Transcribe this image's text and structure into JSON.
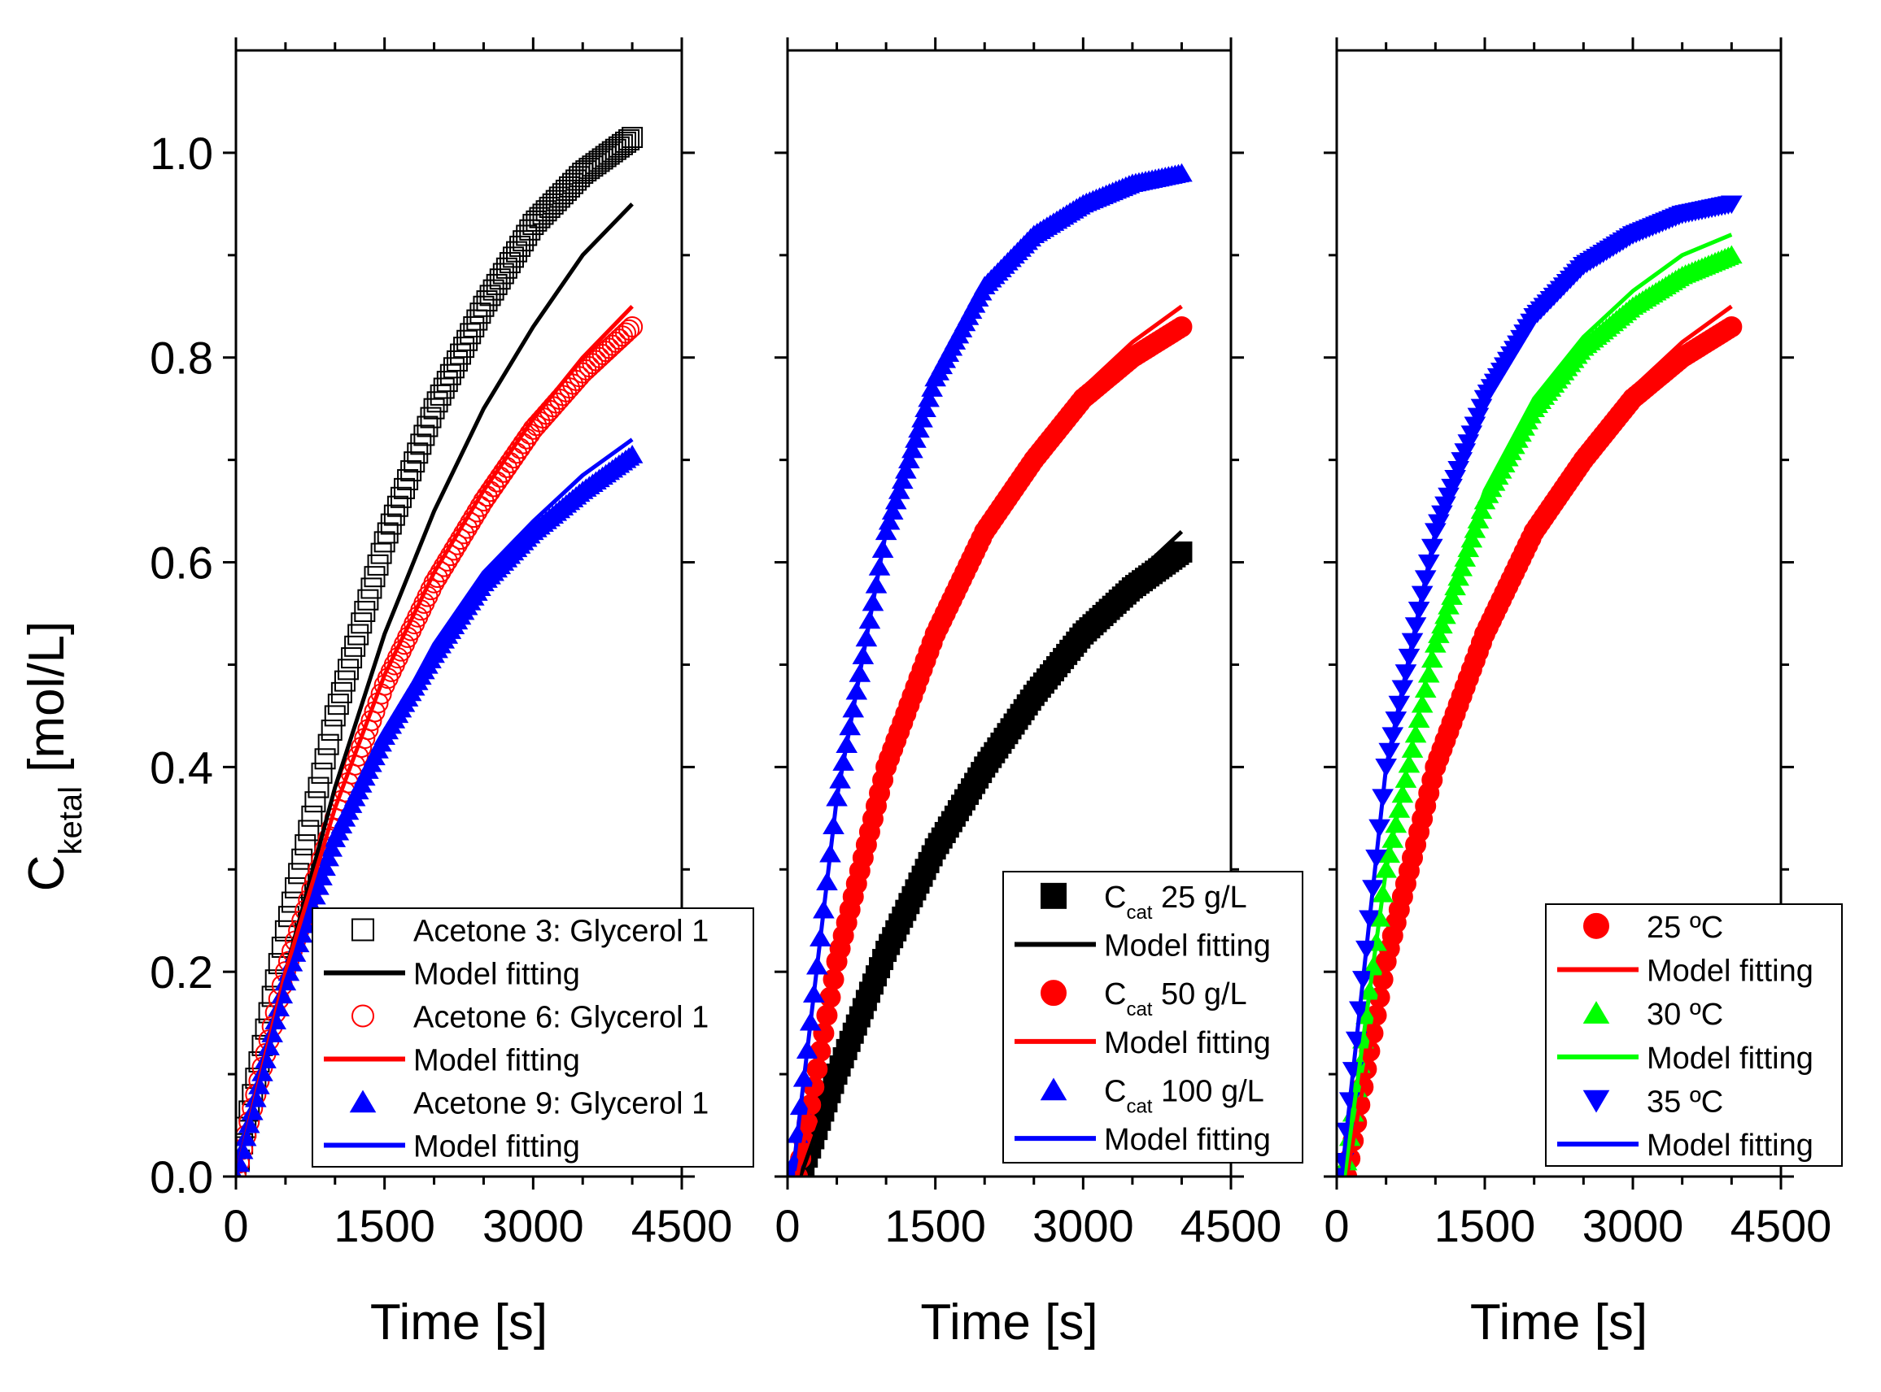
{
  "colors": {
    "black": "#000000",
    "red": "#ff0000",
    "blue": "#0000ff",
    "green": "#00ff00"
  },
  "y_axis": {
    "title_main": "C",
    "title_sub": "ketal",
    "title_unit": " [mol/L]"
  },
  "chart_data": [
    {
      "type": "scatter",
      "xlabel": "Time [s]",
      "xlim": [
        0,
        4500
      ],
      "ylim": [
        0,
        1.1
      ],
      "xticks": [
        "0",
        "1500",
        "3000",
        "4500"
      ],
      "yticks": [
        "0.0",
        "0.2",
        "0.4",
        "0.6",
        "0.8",
        "1.0"
      ],
      "legend_position": "bottom-right",
      "series": [
        {
          "name": "Acetone 3: Glycerol 1",
          "marker": "open-square",
          "color": "#000000",
          "x": [
            0,
            500,
            1000,
            1500,
            2000,
            2500,
            3000,
            3500,
            4000
          ],
          "y": [
            0.0,
            0.24,
            0.45,
            0.62,
            0.75,
            0.85,
            0.93,
            0.98,
            1.015
          ]
        },
        {
          "name": "Model fitting",
          "marker": "line",
          "color": "#000000",
          "x": [
            0,
            500,
            1000,
            1500,
            2000,
            2500,
            3000,
            3500,
            4000
          ],
          "y": [
            0.0,
            0.2,
            0.38,
            0.53,
            0.65,
            0.75,
            0.83,
            0.9,
            0.95
          ]
        },
        {
          "name": "Acetone 6: Glycerol 1",
          "marker": "open-circle",
          "color": "#ff0000",
          "x": [
            0,
            500,
            1000,
            1500,
            2000,
            2500,
            3000,
            3500,
            4000
          ],
          "y": [
            0.0,
            0.2,
            0.35,
            0.48,
            0.58,
            0.66,
            0.73,
            0.785,
            0.83
          ]
        },
        {
          "name": "Model fitting",
          "marker": "line",
          "color": "#ff0000",
          "x": [
            0,
            500,
            1000,
            1500,
            2000,
            2500,
            3000,
            3500,
            4000
          ],
          "y": [
            0.0,
            0.2,
            0.36,
            0.49,
            0.59,
            0.67,
            0.74,
            0.8,
            0.85
          ]
        },
        {
          "name": "Acetone 9: Glycerol 1",
          "marker": "filled-triangle",
          "color": "#0000ff",
          "x": [
            0,
            500,
            1000,
            1500,
            2000,
            2500,
            3000,
            3500,
            4000
          ],
          "y": [
            0.0,
            0.19,
            0.33,
            0.43,
            0.51,
            0.58,
            0.63,
            0.67,
            0.705
          ]
        },
        {
          "name": "Model fitting",
          "marker": "line",
          "color": "#0000ff",
          "x": [
            0,
            500,
            1000,
            1500,
            2000,
            2500,
            3000,
            3500,
            4000
          ],
          "y": [
            0.0,
            0.19,
            0.33,
            0.43,
            0.52,
            0.59,
            0.64,
            0.685,
            0.72
          ]
        }
      ]
    },
    {
      "type": "scatter",
      "xlabel": "Time [s]",
      "xlim": [
        0,
        4500
      ],
      "ylim": [
        0,
        1.1
      ],
      "xticks": [
        "0",
        "1500",
        "3000",
        "4500"
      ],
      "yticks": [
        "0.0",
        "0.2",
        "0.4",
        "0.6",
        "0.8",
        "1.0"
      ],
      "legend_position": "bottom-right",
      "series": [
        {
          "name": "C",
          "name_sub": "cat",
          "name_rest": " 25 g/L",
          "marker": "filled-square",
          "color": "#000000",
          "x": [
            0,
            130,
            500,
            1000,
            1500,
            2000,
            2500,
            3000,
            3500,
            4000
          ],
          "y": [
            0.0,
            0.0,
            0.1,
            0.22,
            0.32,
            0.4,
            0.47,
            0.53,
            0.575,
            0.61
          ]
        },
        {
          "name": "Model fitting",
          "marker": "line",
          "color": "#000000",
          "x": [
            0,
            130,
            500,
            1000,
            1500,
            2000,
            2500,
            3000,
            3500,
            4000
          ],
          "y": [
            0.0,
            0.0,
            0.1,
            0.22,
            0.32,
            0.4,
            0.47,
            0.53,
            0.585,
            0.63
          ]
        },
        {
          "name": "C",
          "name_sub": "cat",
          "name_rest": " 50 g/L",
          "marker": "filled-circle",
          "color": "#ff0000",
          "x": [
            0,
            100,
            500,
            1000,
            1500,
            2000,
            2500,
            3000,
            3500,
            4000
          ],
          "y": [
            0.0,
            0.0,
            0.21,
            0.4,
            0.53,
            0.63,
            0.7,
            0.76,
            0.8,
            0.83
          ]
        },
        {
          "name": "Model fitting",
          "marker": "line",
          "color": "#ff0000",
          "x": [
            0,
            100,
            500,
            1000,
            1500,
            2000,
            2500,
            3000,
            3500,
            4000
          ],
          "y": [
            0.0,
            0.0,
            0.21,
            0.4,
            0.54,
            0.64,
            0.71,
            0.77,
            0.815,
            0.85
          ]
        },
        {
          "name": "C",
          "name_sub": "cat",
          "name_rest": " 100 g/L",
          "marker": "filled-triangle",
          "color": "#0000ff",
          "x": [
            0,
            50,
            500,
            1000,
            1500,
            2000,
            2500,
            3000,
            3500,
            4000
          ],
          "y": [
            0.0,
            0.0,
            0.37,
            0.63,
            0.78,
            0.87,
            0.92,
            0.95,
            0.97,
            0.98
          ]
        },
        {
          "name": "Model fitting",
          "marker": "line",
          "color": "#0000ff",
          "x": [
            0,
            50,
            500,
            1000,
            1500,
            2000,
            2500,
            3000,
            3500,
            4000
          ],
          "y": [
            0.0,
            0.0,
            0.37,
            0.63,
            0.78,
            0.87,
            0.92,
            0.95,
            0.97,
            0.98
          ]
        }
      ]
    },
    {
      "type": "scatter",
      "xlabel": "Time [s]",
      "xlim": [
        0,
        4500
      ],
      "ylim": [
        0,
        1.1
      ],
      "xticks": [
        "0",
        "1500",
        "3000",
        "4500"
      ],
      "yticks": [
        "0.0",
        "0.2",
        "0.4",
        "0.6",
        "0.8",
        "1.0"
      ],
      "legend_position": "bottom-right",
      "series": [
        {
          "name": "25 ºC",
          "marker": "filled-circle",
          "color": "#ff0000",
          "x": [
            0,
            100,
            500,
            1000,
            1500,
            2000,
            2500,
            3000,
            3500,
            4000
          ],
          "y": [
            0.0,
            0.0,
            0.21,
            0.4,
            0.53,
            0.63,
            0.7,
            0.76,
            0.8,
            0.83
          ]
        },
        {
          "name": "Model fitting",
          "marker": "line",
          "color": "#ff0000",
          "x": [
            0,
            100,
            500,
            1000,
            1500,
            2000,
            2500,
            3000,
            3500,
            4000
          ],
          "y": [
            0.0,
            0.0,
            0.21,
            0.4,
            0.54,
            0.64,
            0.71,
            0.77,
            0.815,
            0.85
          ]
        },
        {
          "name": "30 ºC",
          "marker": "filled-triangle",
          "color": "#00ff00",
          "x": [
            0,
            80,
            500,
            1000,
            1500,
            2000,
            2500,
            3000,
            3500,
            4000
          ],
          "y": [
            0.0,
            0.0,
            0.3,
            0.52,
            0.66,
            0.75,
            0.81,
            0.85,
            0.88,
            0.9
          ]
        },
        {
          "name": "Model fitting",
          "marker": "line",
          "color": "#00ff00",
          "x": [
            0,
            80,
            500,
            1000,
            1500,
            2000,
            2500,
            3000,
            3500,
            4000
          ],
          "y": [
            0.0,
            0.0,
            0.3,
            0.53,
            0.67,
            0.76,
            0.82,
            0.865,
            0.9,
            0.92
          ]
        },
        {
          "name": "35 ºC",
          "marker": "filled-triangle-down",
          "color": "#0000ff",
          "x": [
            0,
            50,
            500,
            1000,
            1500,
            2000,
            2500,
            3000,
            3500,
            4000
          ],
          "y": [
            0.0,
            0.0,
            0.4,
            0.63,
            0.76,
            0.84,
            0.89,
            0.92,
            0.94,
            0.95
          ]
        },
        {
          "name": "Model fitting",
          "marker": "line",
          "color": "#0000ff",
          "x": [
            0,
            50,
            500,
            1000,
            1500,
            2000,
            2500,
            3000,
            3500,
            4000
          ],
          "y": [
            0.0,
            0.0,
            0.4,
            0.63,
            0.76,
            0.84,
            0.89,
            0.92,
            0.935,
            0.945
          ]
        }
      ]
    }
  ]
}
